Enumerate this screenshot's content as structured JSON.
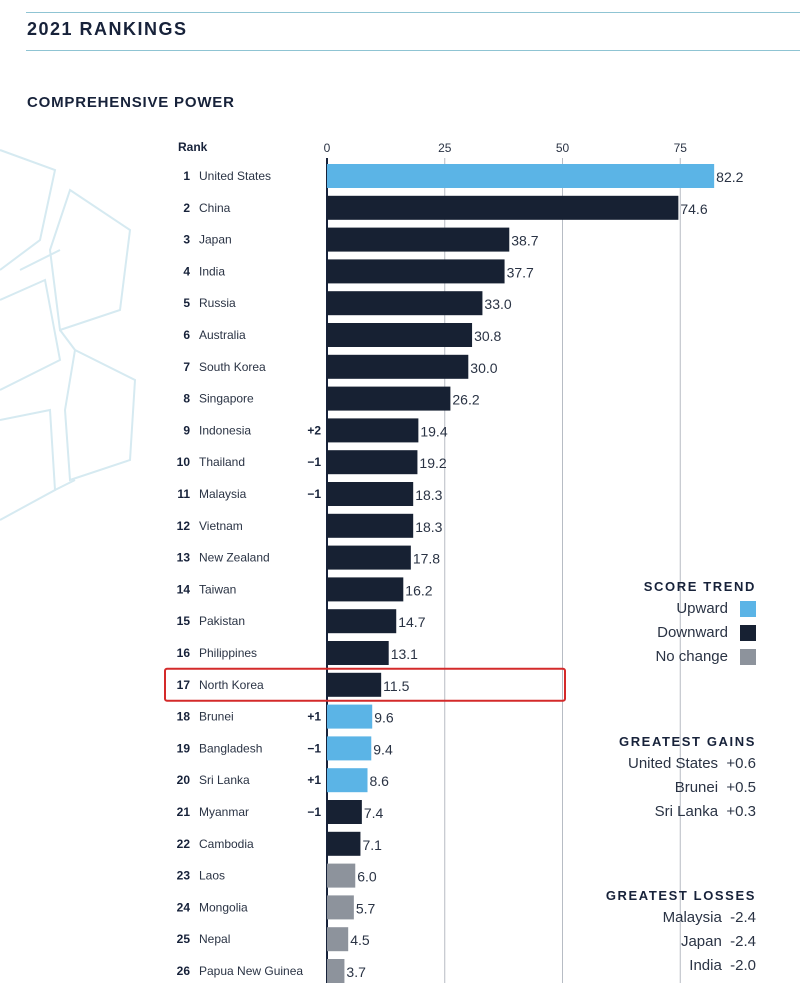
{
  "header": {
    "title": "2021 RANKINGS"
  },
  "colors": {
    "upward": "#5bb4e6",
    "downward": "#172133",
    "no_change": "#8d939c",
    "highlight": "#d42a2a"
  },
  "chart_data": {
    "type": "bar",
    "orientation": "horizontal",
    "title": "COMPREHENSIVE POWER",
    "rank_header": "Rank",
    "xlim": [
      0,
      85
    ],
    "xticks": [
      0,
      25,
      50,
      75
    ],
    "grid": true,
    "highlighted_rank": 17,
    "rows": [
      {
        "rank": "1",
        "country": "United States",
        "value": 82.2,
        "label": "82.2",
        "trend": "upward",
        "change": ""
      },
      {
        "rank": "2",
        "country": "China",
        "value": 74.6,
        "label": "74.6",
        "trend": "downward",
        "change": ""
      },
      {
        "rank": "3",
        "country": "Japan",
        "value": 38.7,
        "label": "38.7",
        "trend": "downward",
        "change": ""
      },
      {
        "rank": "4",
        "country": "India",
        "value": 37.7,
        "label": "37.7",
        "trend": "downward",
        "change": ""
      },
      {
        "rank": "5",
        "country": "Russia",
        "value": 33.0,
        "label": "33.0",
        "trend": "downward",
        "change": ""
      },
      {
        "rank": "6",
        "country": "Australia",
        "value": 30.8,
        "label": "30.8",
        "trend": "downward",
        "change": ""
      },
      {
        "rank": "7",
        "country": "South Korea",
        "value": 30.0,
        "label": "30.0",
        "trend": "downward",
        "change": ""
      },
      {
        "rank": "8",
        "country": "Singapore",
        "value": 26.2,
        "label": "26.2",
        "trend": "downward",
        "change": ""
      },
      {
        "rank": "9",
        "country": "Indonesia",
        "value": 19.4,
        "label": "19.4",
        "trend": "downward",
        "change": "+2"
      },
      {
        "rank": "10",
        "country": "Thailand",
        "value": 19.2,
        "label": "19.2",
        "trend": "downward",
        "change": "−1"
      },
      {
        "rank": "11",
        "country": "Malaysia",
        "value": 18.3,
        "label": "18.3",
        "trend": "downward",
        "change": "−1"
      },
      {
        "rank": "12",
        "country": "Vietnam",
        "value": 18.3,
        "label": "18.3",
        "trend": "downward",
        "change": ""
      },
      {
        "rank": "13",
        "country": "New Zealand",
        "value": 17.8,
        "label": "17.8",
        "trend": "downward",
        "change": ""
      },
      {
        "rank": "14",
        "country": "Taiwan",
        "value": 16.2,
        "label": "16.2",
        "trend": "downward",
        "change": ""
      },
      {
        "rank": "15",
        "country": "Pakistan",
        "value": 14.7,
        "label": "14.7",
        "trend": "downward",
        "change": ""
      },
      {
        "rank": "16",
        "country": "Philippines",
        "value": 13.1,
        "label": "13.1",
        "trend": "downward",
        "change": ""
      },
      {
        "rank": "17",
        "country": "North Korea",
        "value": 11.5,
        "label": "11.5",
        "trend": "downward",
        "change": ""
      },
      {
        "rank": "18",
        "country": "Brunei",
        "value": 9.6,
        "label": "9.6",
        "trend": "upward",
        "change": "+1"
      },
      {
        "rank": "19",
        "country": "Bangladesh",
        "value": 9.4,
        "label": "9.4",
        "trend": "upward",
        "change": "−1"
      },
      {
        "rank": "20",
        "country": "Sri Lanka",
        "value": 8.6,
        "label": "8.6",
        "trend": "upward",
        "change": "+1"
      },
      {
        "rank": "21",
        "country": "Myanmar",
        "value": 7.4,
        "label": "7.4",
        "trend": "downward",
        "change": "−1"
      },
      {
        "rank": "22",
        "country": "Cambodia",
        "value": 7.1,
        "label": "7.1",
        "trend": "downward",
        "change": ""
      },
      {
        "rank": "23",
        "country": "Laos",
        "value": 6.0,
        "label": "6.0",
        "trend": "no_change",
        "change": ""
      },
      {
        "rank": "24",
        "country": "Mongolia",
        "value": 5.7,
        "label": "5.7",
        "trend": "no_change",
        "change": ""
      },
      {
        "rank": "25",
        "country": "Nepal",
        "value": 4.5,
        "label": "4.5",
        "trend": "no_change",
        "change": ""
      },
      {
        "rank": "26",
        "country": "Papua New Guinea",
        "value": 3.7,
        "label": "3.7",
        "trend": "no_change",
        "change": ""
      }
    ]
  },
  "legend": {
    "title": "SCORE TREND",
    "items": [
      {
        "label": "Upward",
        "key": "upward"
      },
      {
        "label": "Downward",
        "key": "downward"
      },
      {
        "label": "No change",
        "key": "no_change"
      }
    ]
  },
  "gains": {
    "title": "GREATEST GAINS",
    "items": [
      {
        "text": "United States  +0.6"
      },
      {
        "text": "Brunei  +0.5"
      },
      {
        "text": "Sri Lanka  +0.3"
      }
    ]
  },
  "losses": {
    "title": "GREATEST LOSSES",
    "items": [
      {
        "text": "Malaysia  -2.4"
      },
      {
        "text": "Japan  -2.4"
      },
      {
        "text": "India  -2.0"
      }
    ]
  }
}
